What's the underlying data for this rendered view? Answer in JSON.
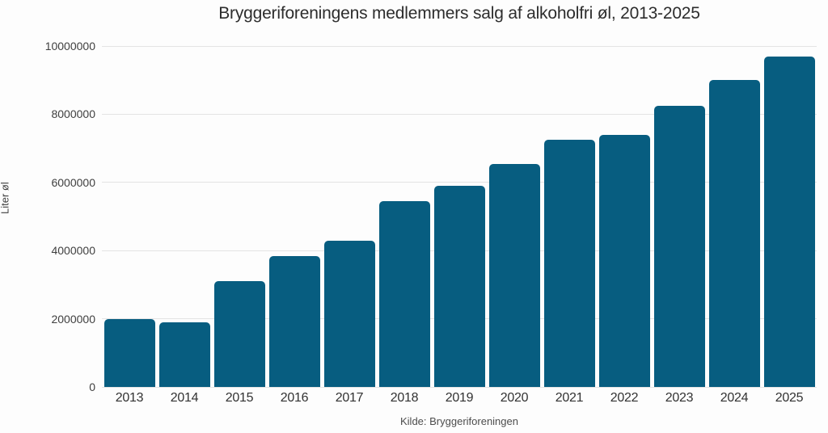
{
  "chart_data": {
    "type": "bar",
    "title": "Bryggeriforeningens medlemmers salg af alkoholfri øl, 2013-2025",
    "ylabel": "Liter øl",
    "xlabel": "",
    "source": "Kilde: Bryggeriforeningen",
    "categories": [
      "2013",
      "2014",
      "2015",
      "2016",
      "2017",
      "2018",
      "2019",
      "2020",
      "2021",
      "2022",
      "2023",
      "2024",
      "2025"
    ],
    "values": [
      2000000,
      1900000,
      3100000,
      3850000,
      4300000,
      5450000,
      5900000,
      6550000,
      7250000,
      7400000,
      8250000,
      9000000,
      9700000
    ],
    "ylim": [
      0,
      10000000
    ],
    "yticks": [
      0,
      2000000,
      4000000,
      6000000,
      8000000,
      10000000
    ],
    "grid": true,
    "legend": "none",
    "colors": {
      "bar": "#075d80",
      "grid": "#e4e4e4",
      "background": "#fdfdfd"
    }
  }
}
